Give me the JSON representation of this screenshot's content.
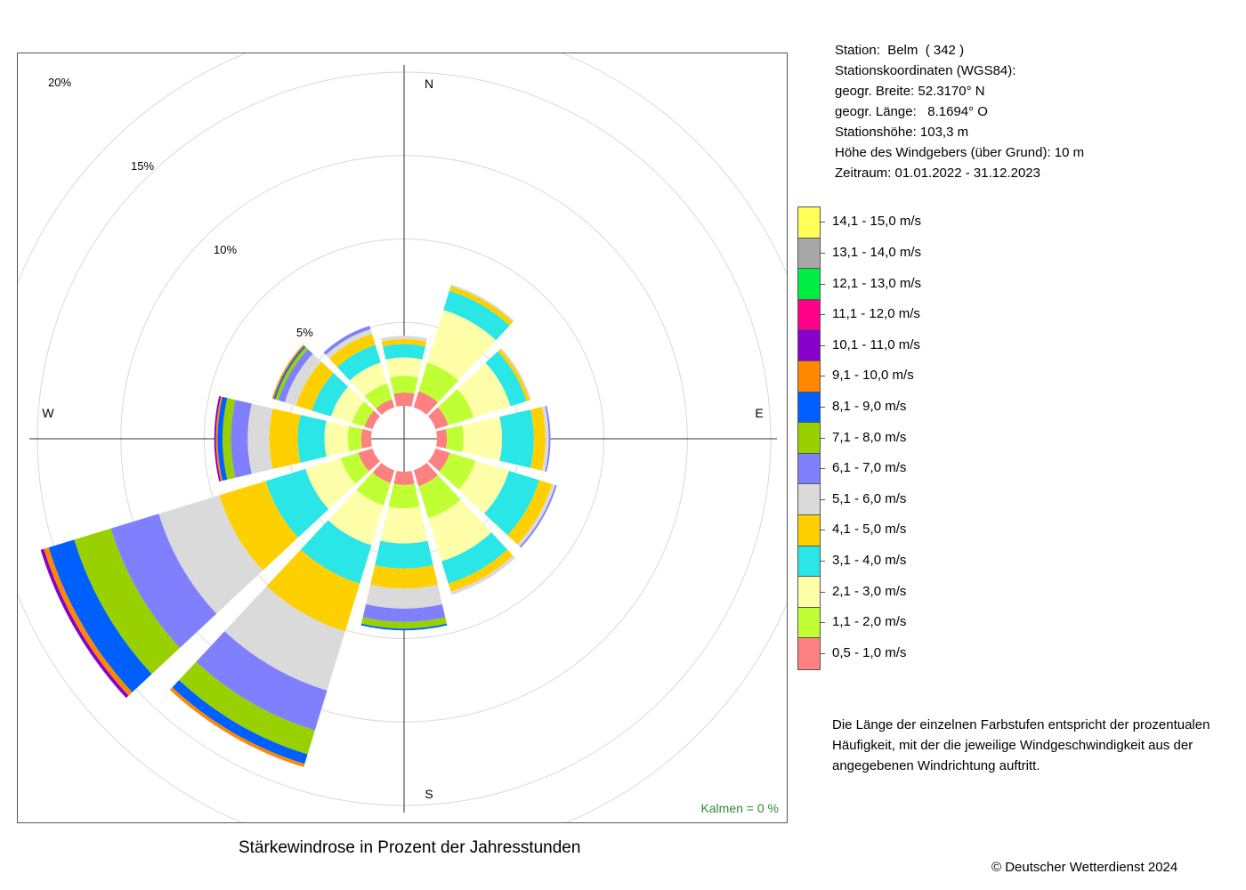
{
  "station": {
    "line1": "Station:  Belm  ( 342 )",
    "line2": "Stationskoordinaten (WGS84):",
    "line3": "geogr. Breite: 52.3170° N",
    "line4": "geogr. Länge:   8.1694° O",
    "line5": "Stationshöhe: 103,3 m",
    "line6": "Höhe des Windgebers (über Grund): 10 m",
    "line7": "Zeitraum: 01.01.2022 - 31.12.2023"
  },
  "note": "Die Länge der einzelnen Farbstufen entspricht der prozentualen Häufigkeit, mit der die jeweilige Windgeschwindigkeit aus der angegebenen Windrichtung auftritt.",
  "caption": "Stärkewindrose in Prozent der Jahresstunden",
  "copyright": "© Deutscher Wetterdienst  2024",
  "chart_data": {
    "type": "wind_rose",
    "title": "Stärkewindrose in Prozent der Jahresstunden",
    "calm_label": "Kalmen  =  0 %",
    "directions": [
      "N",
      "NNE/30°",
      "ENE/60°",
      "E",
      "ESE/120°",
      "SSE/150°",
      "S",
      "SSW/210°",
      "WSW/240°",
      "W",
      "WNW/300°",
      "NNW/330°"
    ],
    "direction_degrees": [
      0,
      30,
      60,
      90,
      120,
      150,
      180,
      210,
      240,
      270,
      300,
      330
    ],
    "compass_labels": [
      "N",
      "E",
      "S",
      "W"
    ],
    "radial_ticks": [
      {
        "value": 5,
        "label": "5%"
      },
      {
        "value": 10,
        "label": "10%"
      },
      {
        "value": 15,
        "label": "15%"
      },
      {
        "value": 20,
        "label": "20%"
      }
    ],
    "rmax": 23,
    "grid": true,
    "speed_classes": [
      {
        "label": "0,5 - 1,0 m/s",
        "color": "#FF8080"
      },
      {
        "label": "1,1 - 2,0 m/s",
        "color": "#BFFF33"
      },
      {
        "label": "2,1 - 3,0 m/s",
        "color": "#FFFFAA"
      },
      {
        "label": "3,1 - 4,0 m/s",
        "color": "#2AE6E6"
      },
      {
        "label": "4,1 - 5,0 m/s",
        "color": "#FFD000"
      },
      {
        "label": "5,1 - 6,0 m/s",
        "color": "#DADADA"
      },
      {
        "label": "6,1 - 7,0 m/s",
        "color": "#8080FF"
      },
      {
        "label": "7,1 - 8,0 m/s",
        "color": "#99D100"
      },
      {
        "label": "8,1 - 9,0 m/s",
        "color": "#0060FF"
      },
      {
        "label": "9,1 - 10,0 m/s",
        "color": "#FF8800"
      },
      {
        "label": "10,1 - 11,0 m/s",
        "color": "#8800CC"
      },
      {
        "label": "11,1 - 12,0 m/s",
        "color": "#FF0088"
      },
      {
        "label": "12,1 - 13,0 m/s",
        "color": "#00EE44"
      },
      {
        "label": "13,1 - 14,0 m/s",
        "color": "#A8A8A8"
      },
      {
        "label": "14,1 - 15,0 m/s",
        "color": "#FFFF55"
      }
    ],
    "frequencies_percent": [
      [
        0.8,
        1.0,
        1.1,
        0.8,
        0.3,
        0.2,
        0.0,
        0.0,
        0.0,
        0.0,
        0.0,
        0.0,
        0.0,
        0.0,
        0.0
      ],
      [
        1.0,
        1.8,
        3.3,
        1.2,
        0.3,
        0.1,
        0.0,
        0.0,
        0.0,
        0.0,
        0.0,
        0.0,
        0.0,
        0.0,
        0.0
      ],
      [
        0.8,
        1.6,
        2.3,
        1.0,
        0.2,
        0.1,
        0.0,
        0.0,
        0.0,
        0.0,
        0.0,
        0.0,
        0.0,
        0.0,
        0.0
      ],
      [
        0.6,
        1.0,
        2.3,
        1.9,
        0.7,
        0.2,
        0.1,
        0.0,
        0.0,
        0.0,
        0.0,
        0.0,
        0.0,
        0.0,
        0.0
      ],
      [
        0.9,
        1.6,
        2.1,
        1.9,
        0.8,
        0.2,
        0.1,
        0.0,
        0.0,
        0.0,
        0.0,
        0.0,
        0.0,
        0.0,
        0.0
      ],
      [
        1.0,
        2.0,
        2.7,
        1.4,
        0.5,
        0.2,
        0.0,
        0.0,
        0.0,
        0.0,
        0.0,
        0.0,
        0.0,
        0.0,
        0.0
      ],
      [
        0.8,
        1.4,
        2.1,
        1.5,
        1.2,
        1.2,
        0.8,
        0.4,
        0.1,
        0.0,
        0.0,
        0.0,
        0.0,
        0.0,
        0.0
      ],
      [
        0.8,
        1.4,
        2.5,
        2.4,
        3.0,
        3.7,
        2.5,
        1.5,
        0.6,
        0.2,
        0.0,
        0.0,
        0.0,
        0.0,
        0.0
      ],
      [
        0.9,
        1.1,
        2.2,
        2.5,
        2.9,
        3.8,
        3.0,
        2.3,
        1.6,
        0.3,
        0.2,
        0.0,
        0.0,
        0.0,
        0.0
      ],
      [
        0.6,
        0.8,
        1.4,
        1.6,
        1.7,
        1.3,
        1.0,
        0.5,
        0.3,
        0.1,
        0.1,
        0.0,
        0.0,
        0.0,
        0.0
      ],
      [
        0.5,
        0.8,
        1.3,
        1.2,
        1.0,
        0.7,
        0.4,
        0.2,
        0.1,
        0.1,
        0.0,
        0.0,
        0.0,
        0.0,
        0.0
      ],
      [
        0.5,
        1.0,
        1.3,
        1.1,
        0.7,
        0.3,
        0.2,
        0.0,
        0.0,
        0.0,
        0.0,
        0.0,
        0.0,
        0.0,
        0.0
      ]
    ]
  }
}
